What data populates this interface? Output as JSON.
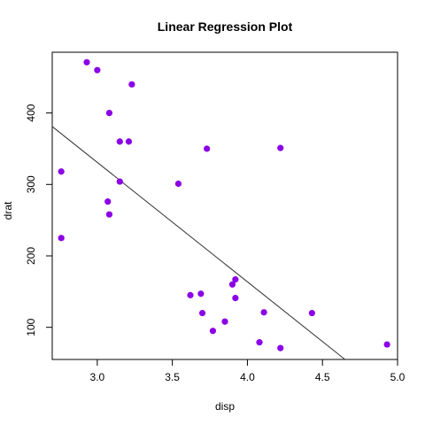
{
  "chart_data": {
    "type": "scatter",
    "title": "Linear Regression Plot",
    "xlabel": "disp",
    "ylabel": "drat",
    "xlim": [
      2.7,
      5.0
    ],
    "ylim": [
      55,
      485
    ],
    "xticks": [
      "3.0",
      "3.5",
      "4.0",
      "4.5",
      "5.0"
    ],
    "yticks": [
      "100",
      "200",
      "300",
      "400"
    ],
    "point_color": "#8B00E6",
    "line_color": "#333333",
    "grid": false,
    "points": [
      {
        "x": 2.93,
        "y": 471
      },
      {
        "x": 3.0,
        "y": 460
      },
      {
        "x": 3.23,
        "y": 440
      },
      {
        "x": 3.08,
        "y": 400
      },
      {
        "x": 3.15,
        "y": 360
      },
      {
        "x": 3.21,
        "y": 360
      },
      {
        "x": 3.73,
        "y": 350
      },
      {
        "x": 4.22,
        "y": 351
      },
      {
        "x": 2.76,
        "y": 318
      },
      {
        "x": 3.15,
        "y": 304
      },
      {
        "x": 3.54,
        "y": 301
      },
      {
        "x": 3.07,
        "y": 276
      },
      {
        "x": 3.08,
        "y": 258
      },
      {
        "x": 2.76,
        "y": 225
      },
      {
        "x": 3.92,
        "y": 167
      },
      {
        "x": 3.9,
        "y": 160
      },
      {
        "x": 3.62,
        "y": 145
      },
      {
        "x": 3.69,
        "y": 147
      },
      {
        "x": 3.92,
        "y": 141
      },
      {
        "x": 3.7,
        "y": 120
      },
      {
        "x": 4.11,
        "y": 121
      },
      {
        "x": 4.43,
        "y": 120
      },
      {
        "x": 3.85,
        "y": 108
      },
      {
        "x": 3.77,
        "y": 95
      },
      {
        "x": 4.08,
        "y": 79
      },
      {
        "x": 4.93,
        "y": 76
      },
      {
        "x": 4.22,
        "y": 71
      }
    ],
    "regression_line": {
      "x": [
        2.7,
        4.65
      ],
      "y": [
        381,
        55
      ]
    }
  }
}
